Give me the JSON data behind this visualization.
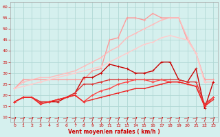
{
  "xlabel": "Vent moyen/en rafales ( km/h )",
  "xlim": [
    -0.5,
    23.5
  ],
  "ylim": [
    8,
    62
  ],
  "yticks": [
    10,
    15,
    20,
    25,
    30,
    35,
    40,
    45,
    50,
    55,
    60
  ],
  "xticks": [
    0,
    1,
    2,
    3,
    4,
    5,
    6,
    7,
    8,
    9,
    10,
    11,
    12,
    13,
    14,
    15,
    16,
    17,
    18,
    19,
    20,
    21,
    22,
    23
  ],
  "bg_color": "#d5f0ee",
  "grid_color": "#b0d8d4",
  "series": [
    {
      "x": [
        0,
        1,
        2,
        3,
        4,
        5,
        6,
        7,
        8,
        9,
        10,
        11,
        12,
        13,
        14,
        15,
        16,
        17,
        18,
        19,
        20,
        21,
        22,
        23
      ],
      "y": [
        23,
        27,
        27,
        27,
        27,
        27,
        27,
        27,
        27,
        31,
        32,
        45,
        46,
        55,
        55,
        54,
        57,
        55,
        55,
        55,
        45,
        39,
        27,
        27
      ],
      "color": "#ff9999",
      "lw": 1.0,
      "marker": "+",
      "ms": 3.0
    },
    {
      "x": [
        0,
        1,
        2,
        3,
        4,
        5,
        6,
        7,
        8,
        9,
        10,
        11,
        12,
        13,
        14,
        15,
        16,
        17,
        18,
        19,
        20,
        21,
        22,
        23
      ],
      "y": [
        23,
        26,
        27,
        28,
        28,
        29,
        30,
        31,
        33,
        35,
        37,
        40,
        42,
        46,
        48,
        50,
        52,
        54,
        55,
        55,
        46,
        39,
        26,
        26
      ],
      "color": "#ffbbbb",
      "lw": 1.0,
      "marker": "+",
      "ms": 3.0
    },
    {
      "x": [
        0,
        1,
        2,
        3,
        4,
        5,
        6,
        7,
        8,
        9,
        10,
        11,
        12,
        13,
        14,
        15,
        16,
        17,
        18,
        19,
        20,
        21,
        22,
        23
      ],
      "y": [
        23,
        24,
        25,
        26,
        27,
        28,
        29,
        30,
        31,
        32,
        33,
        35,
        37,
        39,
        41,
        43,
        44,
        46,
        47,
        46,
        45,
        39,
        26,
        26
      ],
      "color": "#ffcccc",
      "lw": 1.0,
      "marker": "+",
      "ms": 2.5
    },
    {
      "x": [
        0,
        1,
        2,
        3,
        4,
        5,
        6,
        7,
        8,
        9,
        10,
        11,
        12,
        13,
        14,
        15,
        16,
        17,
        18,
        19,
        20,
        21,
        22,
        23
      ],
      "y": [
        17,
        19,
        19,
        17,
        17,
        17,
        19,
        21,
        28,
        28,
        30,
        34,
        33,
        32,
        30,
        30,
        31,
        35,
        35,
        27,
        26,
        32,
        14,
        26
      ],
      "color": "#cc0000",
      "lw": 1.0,
      "marker": "+",
      "ms": 3.0
    },
    {
      "x": [
        0,
        1,
        2,
        3,
        4,
        5,
        6,
        7,
        8,
        9,
        10,
        11,
        12,
        13,
        14,
        15,
        16,
        17,
        18,
        19,
        20,
        21,
        22,
        23
      ],
      "y": [
        17,
        19,
        19,
        17,
        17,
        18,
        19,
        21,
        25,
        25,
        26,
        27,
        27,
        27,
        27,
        27,
        27,
        27,
        27,
        27,
        26,
        26,
        16,
        19
      ],
      "color": "#dd3333",
      "lw": 1.0,
      "marker": "+",
      "ms": 3.0
    },
    {
      "x": [
        0,
        1,
        2,
        3,
        4,
        5,
        6,
        7,
        8,
        9,
        10,
        11,
        12,
        13,
        14,
        15,
        16,
        17,
        18,
        19,
        20,
        21,
        22,
        23
      ],
      "y": [
        17,
        19,
        19,
        16,
        17,
        18,
        19,
        20,
        17,
        20,
        22,
        23,
        25,
        26,
        27,
        27,
        26,
        27,
        26,
        26,
        25,
        24,
        15,
        19
      ],
      "color": "#ff4444",
      "lw": 1.0,
      "marker": "+",
      "ms": 2.5
    },
    {
      "x": [
        0,
        1,
        2,
        3,
        4,
        5,
        6,
        7,
        8,
        9,
        10,
        11,
        12,
        13,
        14,
        15,
        16,
        17,
        18,
        19,
        20,
        21,
        22,
        23
      ],
      "y": [
        17,
        19,
        19,
        16,
        17,
        18,
        19,
        20,
        17,
        18,
        19,
        20,
        21,
        22,
        23,
        23,
        24,
        25,
        26,
        26,
        25,
        24,
        15,
        18
      ],
      "color": "#ee2222",
      "lw": 1.0,
      "marker": "+",
      "ms": 2.0
    }
  ]
}
